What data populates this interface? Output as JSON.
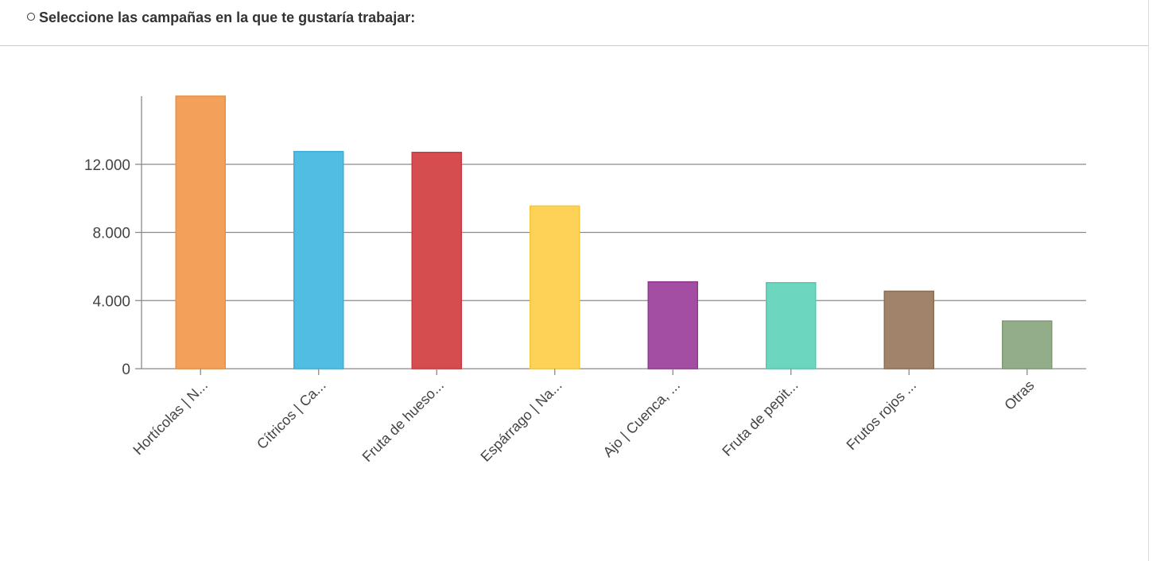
{
  "question": {
    "title": "Seleccione las campañas en la que te gustaría trabajar:"
  },
  "chart_data": {
    "type": "bar",
    "categories": [
      "Hortícolas | N...",
      "Cítricos | Ca...",
      "Fruta de hueso...",
      "Espárrago | Na...",
      "Ajo | Cuenca, ...",
      "Fruta de pepit...",
      "Frutos rojos ...",
      "Otras"
    ],
    "values": [
      16000,
      12750,
      12700,
      9550,
      5100,
      5050,
      4550,
      2800
    ],
    "colors": [
      "#f2a05a",
      "#52bde3",
      "#d64d50",
      "#fdd257",
      "#a34da3",
      "#6dd6bf",
      "#a0836a",
      "#93ad8a"
    ],
    "border_colors": [
      "#e89040",
      "#3aaed8",
      "#c83a3e",
      "#f5c63a",
      "#8e3a8e",
      "#55c8ae",
      "#8a6e55",
      "#7e9a75"
    ],
    "yticks": [
      0,
      4000,
      8000,
      12000
    ],
    "ytick_labels": [
      "0",
      "4.000",
      "8.000",
      "12.000"
    ],
    "ylim": [
      0,
      16000
    ],
    "grid": true,
    "legend": "none"
  }
}
